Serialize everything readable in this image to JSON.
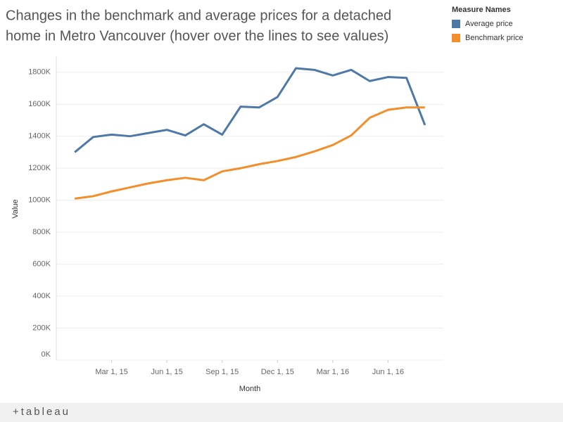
{
  "chart_data": {
    "type": "line",
    "title_lines": [
      "Changes in the benchmark and average prices for a detached",
      "home in Metro Vancouver (hover over the lines to see values)"
    ],
    "x_label": "Month",
    "y_label": "Value",
    "legend_title": "Measure Names",
    "legend": "top-right",
    "x": [
      "2015-01-01",
      "2015-02-01",
      "2015-03-01",
      "2015-04-01",
      "2015-05-01",
      "2015-06-01",
      "2015-07-01",
      "2015-08-01",
      "2015-09-01",
      "2015-10-01",
      "2015-11-01",
      "2015-12-01",
      "2016-01-01",
      "2016-02-01",
      "2016-03-01",
      "2016-04-01",
      "2016-05-01",
      "2016-06-01",
      "2016-07-01",
      "2016-08-01"
    ],
    "series": [
      {
        "name": "Average price",
        "color": "#4e79a7",
        "values": [
          1300000,
          1395000,
          1410000,
          1400000,
          1420000,
          1440000,
          1405000,
          1475000,
          1410000,
          1585000,
          1580000,
          1645000,
          1825000,
          1815000,
          1780000,
          1815000,
          1745000,
          1770000,
          1765000,
          1470000
        ]
      },
      {
        "name": "Benchmark price",
        "color": "#f28e2b",
        "values": [
          1010000,
          1025000,
          1055000,
          1080000,
          1105000,
          1125000,
          1140000,
          1125000,
          1180000,
          1200000,
          1225000,
          1245000,
          1270000,
          1305000,
          1345000,
          1405000,
          1515000,
          1565000,
          1580000,
          1580000
        ]
      }
    ],
    "xlim": [
      "2014-12-01",
      "2016-09-01"
    ],
    "xticks": [
      {
        "value": "2015-03-01",
        "label": "Mar 1, 15"
      },
      {
        "value": "2015-06-01",
        "label": "Jun 1, 15"
      },
      {
        "value": "2015-09-01",
        "label": "Sep 1, 15"
      },
      {
        "value": "2015-12-01",
        "label": "Dec 1, 15"
      },
      {
        "value": "2016-03-01",
        "label": "Mar 1, 16"
      },
      {
        "value": "2016-06-01",
        "label": "Jun 1, 16"
      }
    ],
    "ylim": [
      0,
      1900000
    ],
    "yticks": [
      {
        "value": 0,
        "label": "0K"
      },
      {
        "value": 200000,
        "label": "200K"
      },
      {
        "value": 400000,
        "label": "400K"
      },
      {
        "value": 600000,
        "label": "600K"
      },
      {
        "value": 800000,
        "label": "800K"
      },
      {
        "value": 1000000,
        "label": "1000K"
      },
      {
        "value": 1200000,
        "label": "1200K"
      },
      {
        "value": 1400000,
        "label": "1400K"
      },
      {
        "value": 1600000,
        "label": "1600K"
      },
      {
        "value": 1800000,
        "label": "1800K"
      }
    ],
    "grid": true,
    "footer_logo": "+tableau"
  }
}
